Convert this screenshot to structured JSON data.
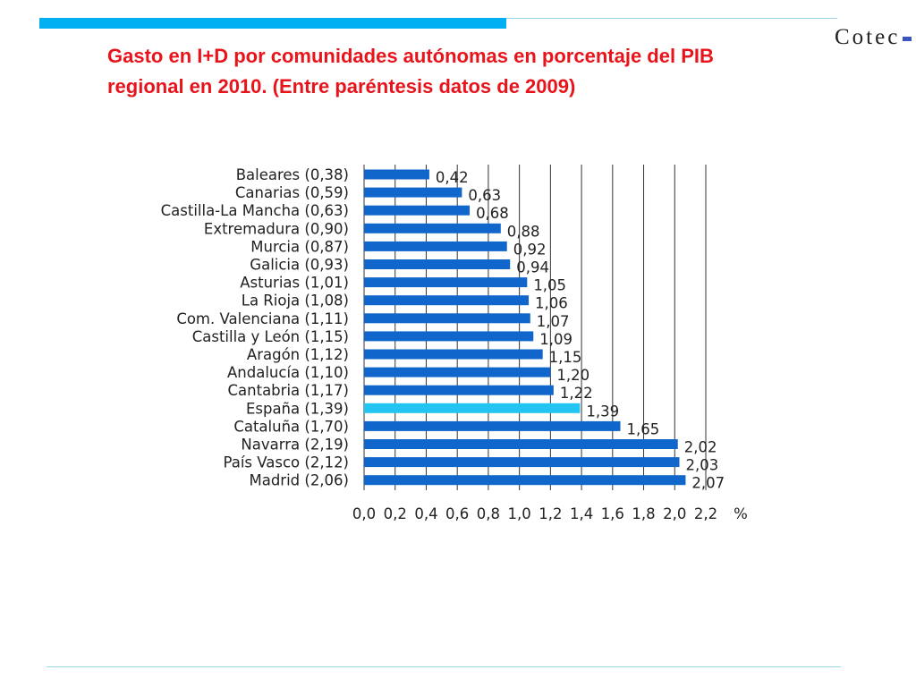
{
  "header": {
    "title_line1": "Gasto en I+D por comunidades autónomas en porcentaje del PIB",
    "title_line2": "regional en 2010. (Entre paréntesis datos de 2009)",
    "logo": "Cotec"
  },
  "colors": {
    "accent_bar": "#00b0f0",
    "thin_line": "#9dd5ea",
    "title": "#e8141c",
    "bar": "#1166cc",
    "highlight_bar": "#22c4f2",
    "logo_dash": "#3a55c0",
    "gridline": "#333333"
  },
  "chart_data": {
    "type": "bar",
    "orientation": "horizontal",
    "categories": [
      "Baleares (0,38)",
      "Canarias (0,59)",
      "Castilla-La Mancha (0,63)",
      "Extremadura (0,90)",
      "Murcia (0,87)",
      "Galicia (0,93)",
      "Asturias (1,01)",
      "La Rioja (1,08)",
      "Com. Valenciana (1,11)",
      "Castilla y León (1,15)",
      "Aragón (1,12)",
      "Andalucía (1,10)",
      "Cantabria (1,17)",
      "España (1,39)",
      "Cataluña (1,70)",
      "Navarra (2,19)",
      "País Vasco (2,12)",
      "Madrid (2,06)"
    ],
    "values": [
      0.42,
      0.63,
      0.68,
      0.88,
      0.92,
      0.94,
      1.05,
      1.06,
      1.07,
      1.09,
      1.15,
      1.2,
      1.22,
      1.39,
      1.65,
      2.02,
      2.03,
      2.07
    ],
    "value_labels": [
      "0,42",
      "0,63",
      "0,68",
      "0,88",
      "0,92",
      "0,94",
      "1,05",
      "1,06",
      "1,07",
      "1,09",
      "1,15",
      "1,20",
      "1,22",
      "1,39",
      "1,65",
      "2,02",
      "2,03",
      "2,07"
    ],
    "highlight": "España (1,39)",
    "xlim": [
      0,
      2.2
    ],
    "xticks": [
      0.0,
      0.2,
      0.4,
      0.6,
      0.8,
      1.0,
      1.2,
      1.4,
      1.6,
      1.8,
      2.0,
      2.2
    ],
    "xtick_labels": [
      "0,0",
      "0,2",
      "0,4",
      "0,6",
      "0,8",
      "1,0",
      "1,2",
      "1,4",
      "1,6",
      "1,8",
      "2,0",
      "2,2"
    ],
    "xunit": "%",
    "grid": true,
    "legend": "none"
  }
}
